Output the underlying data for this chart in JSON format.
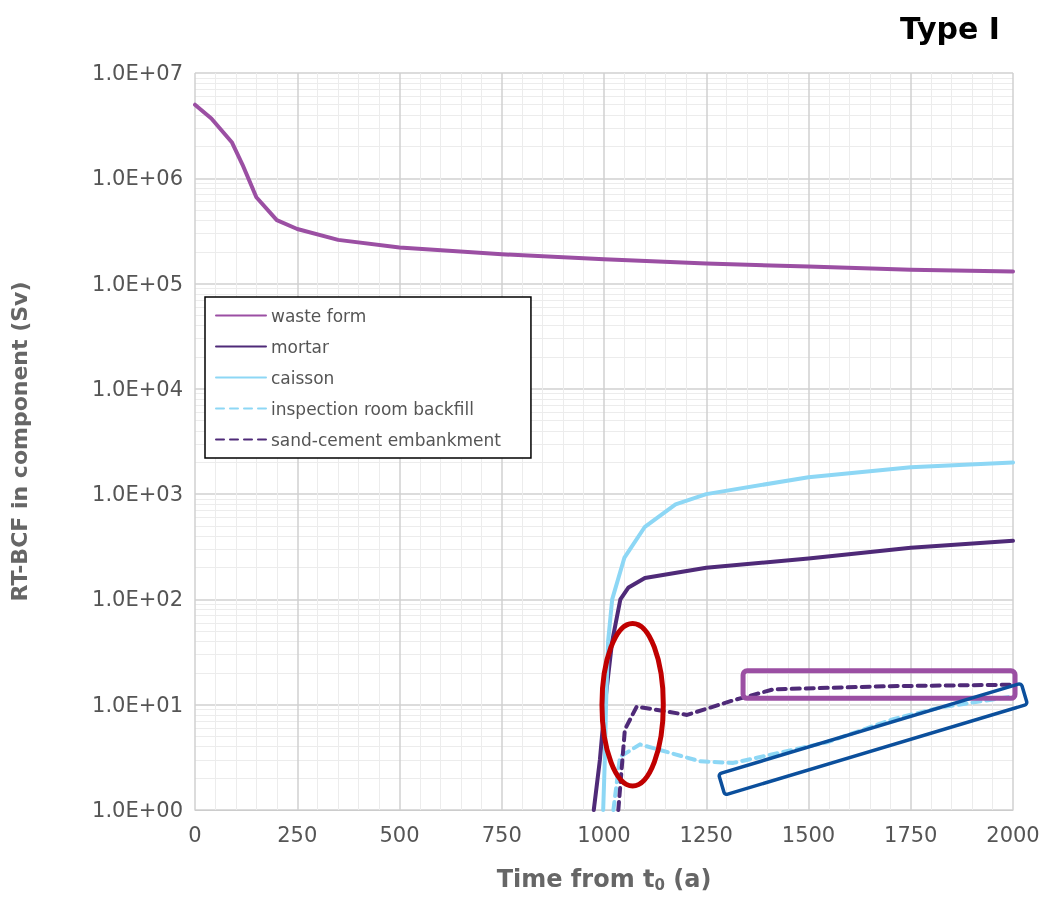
{
  "chart_data": {
    "type": "line",
    "title": "Type I",
    "xlabel": "Time from t$_{0}$ (a)",
    "ylabel": "RT-BCF in component (Sv)",
    "xlim": [
      0,
      2000
    ],
    "xticks": [
      0,
      250,
      500,
      750,
      1000,
      1250,
      1500,
      1750,
      2000
    ],
    "ylim": [
      1,
      10000000
    ],
    "yticks": [
      {
        "value": 1,
        "label": "1.0E+00"
      },
      {
        "value": 10,
        "label": "1.0E+01"
      },
      {
        "value": 100,
        "label": "1.0E+02"
      },
      {
        "value": 1000,
        "label": "1.0E+03"
      },
      {
        "value": 10000,
        "label": "1.0E+04"
      },
      {
        "value": 100000,
        "label": "1.0E+05"
      },
      {
        "value": 1000000,
        "label": "1.0E+06"
      },
      {
        "value": 10000000,
        "label": "1.0E+07"
      }
    ],
    "log": "y",
    "grid": true,
    "legend": "top left",
    "marker": "none",
    "series": [
      {
        "name": "waste form",
        "color": "#9b4fa3",
        "line_style": "solid",
        "x": [
          0,
          40,
          90,
          116,
          150,
          200,
          250,
          350,
          500,
          750,
          1000,
          1250,
          1500,
          1750,
          2000
        ],
        "values": [
          5000000,
          3700000,
          2200000,
          1350000,
          660000,
          400000,
          330000,
          260000,
          220000,
          190000,
          170000,
          155000,
          145000,
          135000,
          130000
        ]
      },
      {
        "name": "mortar",
        "color": "#4f2a78",
        "line_style": "solid",
        "x": [
          975,
          990,
          1002,
          1020,
          1040,
          1060,
          1100,
          1250,
          1500,
          1750,
          2000
        ],
        "values": [
          1,
          3,
          10,
          40,
          100,
          130,
          160,
          200,
          245,
          310,
          360
        ]
      },
      {
        "name": "caisson",
        "color": "#8dd7f5",
        "line_style": "solid",
        "x": [
          998,
          1002,
          1005,
          1010,
          1020,
          1050,
          1100,
          1175,
          1250,
          1500,
          1750,
          2000
        ],
        "values": [
          1,
          3,
          10,
          40,
          100,
          250,
          490,
          800,
          1000,
          1450,
          1800,
          2000
        ]
      },
      {
        "name": "inspection room backfill",
        "color": "#8dd7f5",
        "line_style": "dashed",
        "x": [
          1023,
          1039,
          1088,
          1235,
          1316,
          1545,
          1707,
          1822,
          2000
        ],
        "values": [
          1,
          3.2,
          4.2,
          2.9,
          2.8,
          4.4,
          7.3,
          9.4,
          12
        ]
      },
      {
        "name": "sand-cement embankment",
        "color": "#4f2a78",
        "line_style": "dashed",
        "x": [
          1035,
          1051,
          1080,
          1203,
          1316,
          1414,
          1700,
          2000
        ],
        "values": [
          1,
          5.8,
          9.6,
          8,
          11,
          14,
          15,
          15.5
        ]
      }
    ]
  }
}
